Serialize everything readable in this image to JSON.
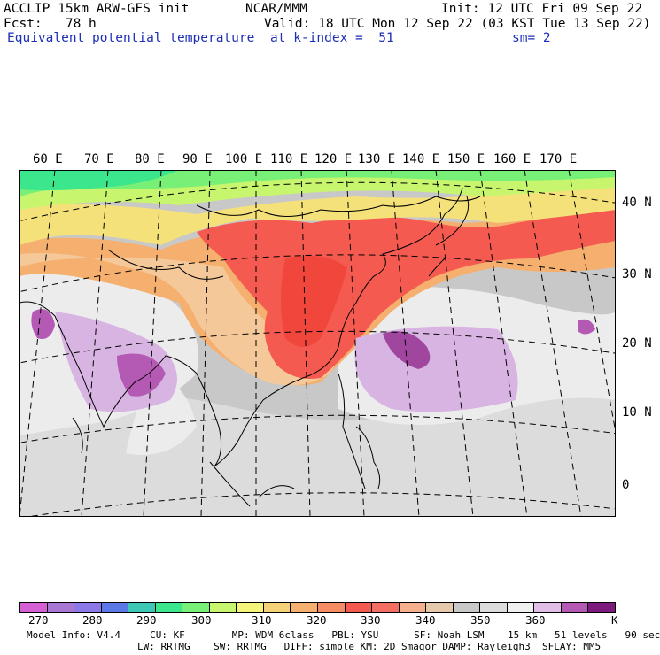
{
  "header": {
    "model_title": "ACCLIP 15km ARW-GFS init",
    "org": "NCAR/MMM",
    "init": "Init: 12 UTC Fri 09 Sep 22",
    "forecast": "Fcst:   78 h",
    "valid": "Valid: 18 UTC Mon 12 Sep 22 (03 KST Tue 13 Sep 22)",
    "field": "Equivalent potential temperature",
    "level": "at k-index =  51",
    "smoothing": "sm= 2"
  },
  "longitude_labels": [
    "60 E",
    "70 E",
    "80 E",
    "90 E",
    "100 E",
    "110 E",
    "120 E",
    "130 E",
    "140 E",
    "150 E",
    "160 E",
    "170 E"
  ],
  "latitude_labels": [
    "40 N",
    "30 N",
    "20 N",
    "10 N",
    "0"
  ],
  "colorbar": {
    "colors": [
      "#d460d4",
      "#a878d4",
      "#8c78e6",
      "#5a78e6",
      "#3cc8b4",
      "#3ce68c",
      "#78f078",
      "#c8f56e",
      "#f5f57a",
      "#f5d278",
      "#f5af6e",
      "#f58c64",
      "#f55a50",
      "#f56e64",
      "#f5af8c",
      "#e6c8aa",
      "#c8c8c8",
      "#dcdcdc",
      "#f0f0f0",
      "#e1bee6",
      "#b45ab4",
      "#7d1a7d"
    ],
    "tick_labels": [
      "270",
      "280",
      "290",
      "300",
      "310",
      "320",
      "330",
      "340",
      "350",
      "360"
    ],
    "unit": "K"
  },
  "footer": {
    "line1": "Model Info: V4.4     CU: KF        MP: WDM 6class   PBL: YSU      SF: Noah LSM    15 km   51 levels   90 sec",
    "line2": "LW: RRTMG    SW: RRTMG   DIFF: simple KM: 2D Smagor DAMP: Rayleigh3  SFLAY: MM5"
  }
}
